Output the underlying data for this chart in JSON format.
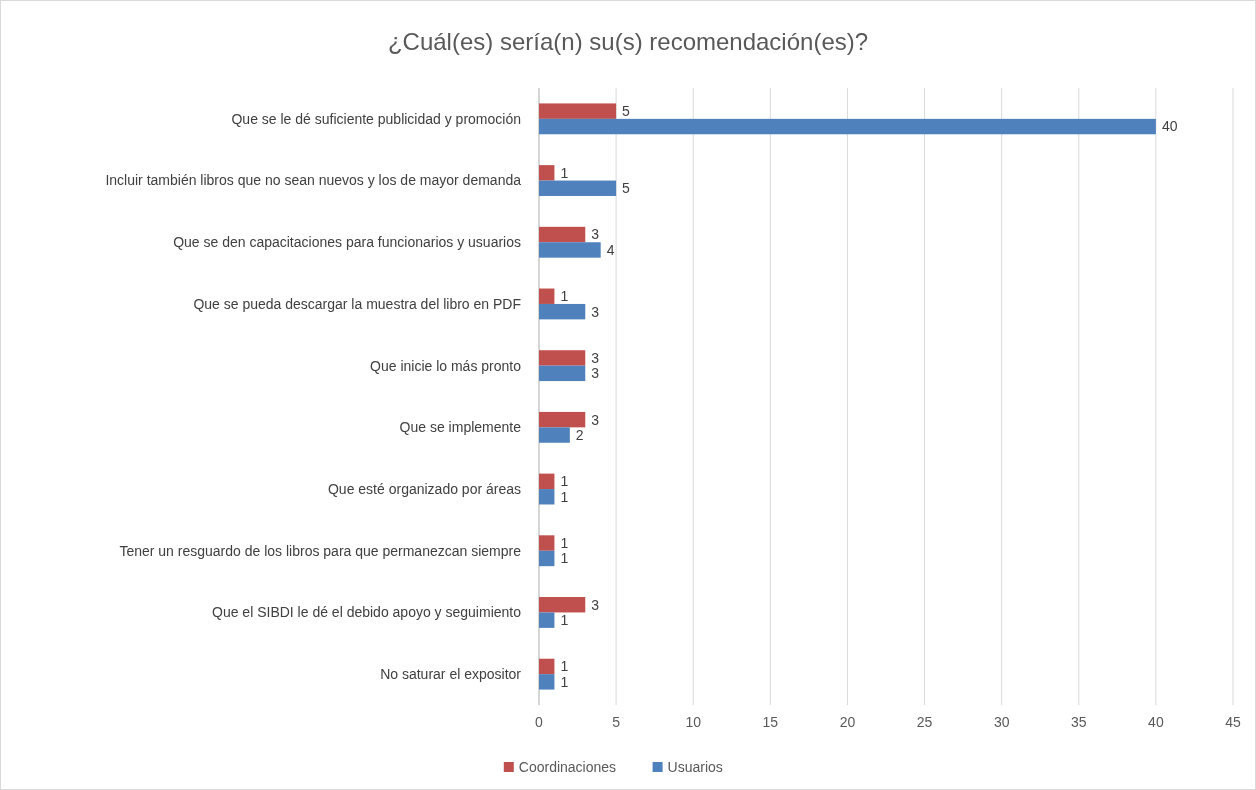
{
  "chart_data": {
    "type": "bar",
    "orientation": "horizontal",
    "title": "¿Cuál(es) sería(n) su(s) recomendación(es)?",
    "categories": [
      "Que se le dé suficiente publicidad y promoción",
      "Incluir también libros que no sean nuevos y los de mayor demanda",
      "Que se den capacitaciones para funcionarios y usuarios",
      "Que se pueda descargar la muestra del libro en PDF",
      "Que inicie lo más pronto",
      "Que se implemente",
      "Que esté organizado por áreas",
      "Tener un resguardo de los libros para que permanezcan siempre",
      "Que el SIBDI le dé el debido apoyo y seguimiento",
      "No saturar el expositor"
    ],
    "series": [
      {
        "name": "Coordinaciones",
        "color": "#c0504d",
        "values": [
          5,
          1,
          3,
          1,
          3,
          3,
          1,
          1,
          3,
          1
        ]
      },
      {
        "name": "Usuarios",
        "color": "#4f81bd",
        "values": [
          40,
          5,
          4,
          3,
          3,
          2,
          1,
          1,
          1,
          1
        ]
      }
    ],
    "xlim": [
      0,
      45
    ],
    "xticks": [
      0,
      5,
      10,
      15,
      20,
      25,
      30,
      35,
      40,
      45
    ],
    "grid": "x",
    "legend": "bottom",
    "data_labels": true
  }
}
